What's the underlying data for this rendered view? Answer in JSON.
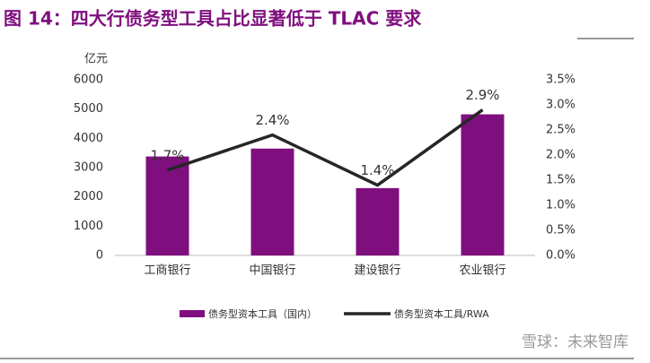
{
  "chart_data": {
    "type": "bar-line",
    "title": "图 14：四大行债务型工具占比显著低于 TLAC 要求",
    "y_unit": "亿元",
    "watermark": "雪球：未来智库",
    "categories": [
      "工商银行",
      "中国银行",
      "建设银行",
      "农业银行"
    ],
    "series": [
      {
        "name": "债务型资本工具（国内）",
        "type": "bar",
        "color": "#7f0f7e",
        "values": [
          3380,
          3650,
          2300,
          4820
        ]
      },
      {
        "name": "债务型资本工具/RWA",
        "type": "line",
        "axis": "y2",
        "color": "#262626",
        "values": [
          1.7,
          2.4,
          1.4,
          2.9
        ],
        "value_labels": [
          "1.7%",
          "2.4%",
          "1.4%",
          "2.9%"
        ]
      }
    ],
    "ylim": [
      0,
      6000
    ],
    "yticks": [
      0,
      1000,
      2000,
      3000,
      4000,
      5000,
      6000
    ],
    "y2lim": [
      0,
      3.5
    ],
    "y2ticks": [
      {
        "value": 0,
        "label": "0.0%"
      },
      {
        "value": 0.5,
        "label": "0.5%"
      },
      {
        "value": 1,
        "label": "1.0%"
      },
      {
        "value": 1.5,
        "label": "1.5%"
      },
      {
        "value": 2,
        "label": "2.0%"
      },
      {
        "value": 2.5,
        "label": "2.5%"
      },
      {
        "value": 3,
        "label": "3.0%"
      },
      {
        "value": 3.5,
        "label": "3.5%"
      }
    ],
    "grid": false,
    "legend": "bottom"
  }
}
